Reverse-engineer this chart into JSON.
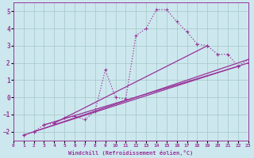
{
  "xlabel": "Windchill (Refroidissement éolien,°C)",
  "background_color": "#cce8ee",
  "line_color": "#993399",
  "grid_color": "#aacccc",
  "xlim": [
    0,
    23
  ],
  "ylim": [
    -2.5,
    5.5
  ],
  "xticks": [
    0,
    1,
    2,
    3,
    4,
    5,
    6,
    7,
    8,
    9,
    10,
    11,
    12,
    13,
    14,
    15,
    16,
    17,
    18,
    19,
    20,
    21,
    22,
    23
  ],
  "yticks": [
    -2,
    -1,
    0,
    1,
    2,
    3,
    4,
    5
  ],
  "series": [
    [
      1,
      -2.2
    ],
    [
      2,
      -2.0
    ],
    [
      3,
      -1.6
    ],
    [
      4,
      -1.5
    ],
    [
      5,
      -1.2
    ],
    [
      6,
      -1.1
    ],
    [
      7,
      -1.3
    ],
    [
      8,
      -0.8
    ],
    [
      9,
      1.6
    ],
    [
      10,
      0.0
    ],
    [
      11,
      -0.1
    ],
    [
      12,
      3.6
    ],
    [
      13,
      4.0
    ],
    [
      14,
      5.1
    ],
    [
      15,
      5.1
    ],
    [
      16,
      4.4
    ],
    [
      17,
      3.8
    ],
    [
      18,
      3.1
    ],
    [
      19,
      3.0
    ],
    [
      20,
      2.5
    ],
    [
      21,
      2.5
    ],
    [
      22,
      1.8
    ],
    [
      23,
      2.2
    ]
  ],
  "extra_lines": [
    [
      [
        1,
        -2.2
      ],
      [
        23,
        2.2
      ]
    ],
    [
      [
        2,
        -2.0
      ],
      [
        23,
        2.0
      ]
    ],
    [
      [
        3,
        -1.6
      ],
      [
        22,
        1.8
      ]
    ],
    [
      [
        4,
        -1.5
      ],
      [
        19,
        3.0
      ]
    ]
  ]
}
